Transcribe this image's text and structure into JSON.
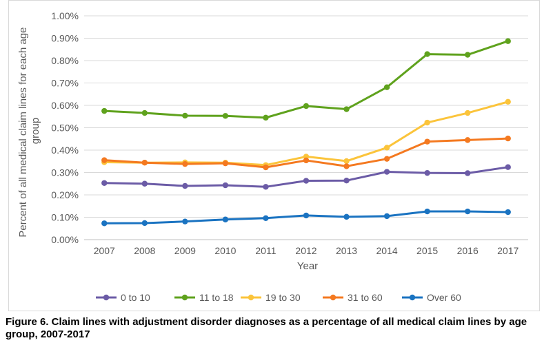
{
  "chart_data": {
    "type": "line",
    "title": "",
    "xlabel": "Year",
    "ylabel": "Percent of all medical claim lines for each age group",
    "ylim": [
      0,
      0.01
    ],
    "y_ticks": [
      "0.00%",
      "0.10%",
      "0.20%",
      "0.30%",
      "0.40%",
      "0.50%",
      "0.60%",
      "0.70%",
      "0.80%",
      "0.90%",
      "1.00%"
    ],
    "categories": [
      "2007",
      "2008",
      "2009",
      "2010",
      "2011",
      "2012",
      "2013",
      "2014",
      "2015",
      "2016",
      "2017"
    ],
    "grid": true,
    "legend_position": "bottom",
    "series": [
      {
        "name": "0 to 10",
        "color": "#6b5ba6",
        "values": [
          0.00253,
          0.0025,
          0.0024,
          0.00243,
          0.00236,
          0.00263,
          0.00264,
          0.00303,
          0.00298,
          0.00297,
          0.00324
        ]
      },
      {
        "name": "11 to 18",
        "color": "#5fa21d",
        "values": [
          0.00575,
          0.00566,
          0.00554,
          0.00553,
          0.00545,
          0.00597,
          0.00583,
          0.00681,
          0.00829,
          0.00826,
          0.00887
        ]
      },
      {
        "name": "19 to 30",
        "color": "#fbc43b",
        "values": [
          0.00346,
          0.00344,
          0.00345,
          0.00344,
          0.00333,
          0.00371,
          0.00351,
          0.00411,
          0.00523,
          0.00566,
          0.00616
        ]
      },
      {
        "name": "31 to 60",
        "color": "#f47920",
        "values": [
          0.00355,
          0.00344,
          0.00338,
          0.00341,
          0.00323,
          0.00354,
          0.00328,
          0.00361,
          0.00438,
          0.00445,
          0.00452
        ]
      },
      {
        "name": "Over 60",
        "color": "#1a73c1",
        "values": [
          0.00073,
          0.00074,
          0.00081,
          0.0009,
          0.00096,
          0.00108,
          0.00102,
          0.00105,
          0.00126,
          0.00126,
          0.00123
        ]
      }
    ]
  },
  "caption": "Figure 6. Claim lines with adjustment disorder diagnoses as a percentage of all medical claim lines by age group, 2007-2017"
}
